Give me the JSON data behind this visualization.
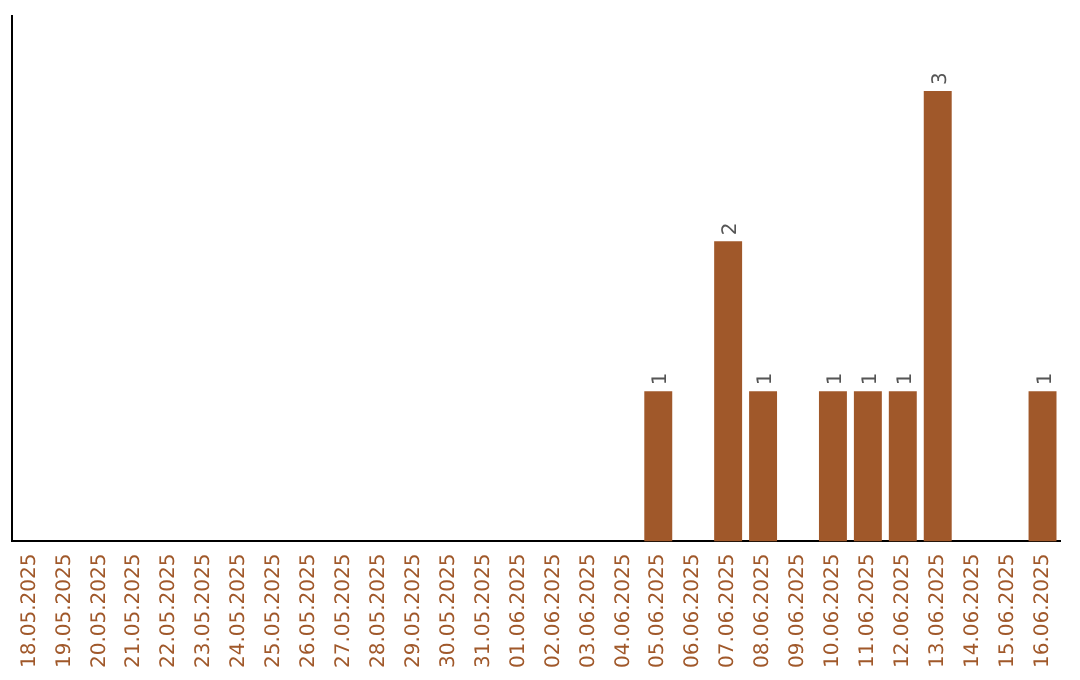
{
  "chart_data": {
    "type": "bar",
    "categories": [
      "18.05.2025",
      "19.05.2025",
      "20.05.2025",
      "21.05.2025",
      "22.05.2025",
      "23.05.2025",
      "24.05.2025",
      "25.05.2025",
      "26.05.2025",
      "27.05.2025",
      "28.05.2025",
      "29.05.2025",
      "30.05.2025",
      "31.05.2025",
      "01.06.2025",
      "02.06.2025",
      "03.06.2025",
      "04.06.2025",
      "05.06.2025",
      "06.06.2025",
      "07.06.2025",
      "08.06.2025",
      "09.06.2025",
      "10.06.2025",
      "11.06.2025",
      "12.06.2025",
      "13.06.2025",
      "14.06.2025",
      "15.06.2025",
      "16.06.2025"
    ],
    "values": [
      null,
      null,
      null,
      null,
      null,
      null,
      null,
      null,
      null,
      null,
      null,
      null,
      null,
      null,
      null,
      null,
      null,
      null,
      1,
      null,
      2,
      1,
      null,
      1,
      1,
      1,
      3,
      null,
      null,
      1
    ],
    "data_labels": true,
    "color": "#a0582a",
    "grid": false,
    "legend": false,
    "tick_labels": "x"
  }
}
